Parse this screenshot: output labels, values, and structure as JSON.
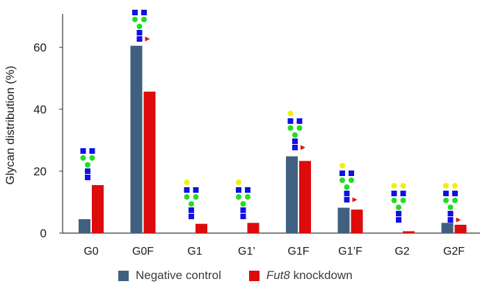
{
  "chart_data": {
    "type": "bar",
    "ylabel": "Glycan distribution (%)",
    "xlabel": "",
    "ylim": [
      0,
      70
    ],
    "yticks": [
      0,
      20,
      40,
      60
    ],
    "categories": [
      "G0",
      "G0F",
      "G1",
      "G1’",
      "G1F",
      "G1’F",
      "G2",
      "G2F"
    ],
    "series": [
      {
        "name": "Negative control",
        "color": "#40607F",
        "values": [
          4.5,
          60.5,
          0,
          0,
          24.8,
          8.2,
          0,
          3.3
        ]
      },
      {
        "name_prefix": "Fut8",
        "name_suffix": " knockdown",
        "color": "#DD0B0B",
        "values": [
          15.5,
          45.7,
          3.0,
          3.3,
          23.3,
          7.6,
          0.6,
          2.7
        ]
      }
    ],
    "legend_position": "bottom",
    "grid": false,
    "glycan_icons": [
      "G0",
      "G0F",
      "G1",
      "G1’",
      "G1F",
      "G1’F",
      "G2",
      "G2F"
    ]
  },
  "colors": {
    "glcnac": "#1010E8",
    "mannose": "#22DD22",
    "galactose": "#F5EE00",
    "fucose": "#E51010"
  }
}
